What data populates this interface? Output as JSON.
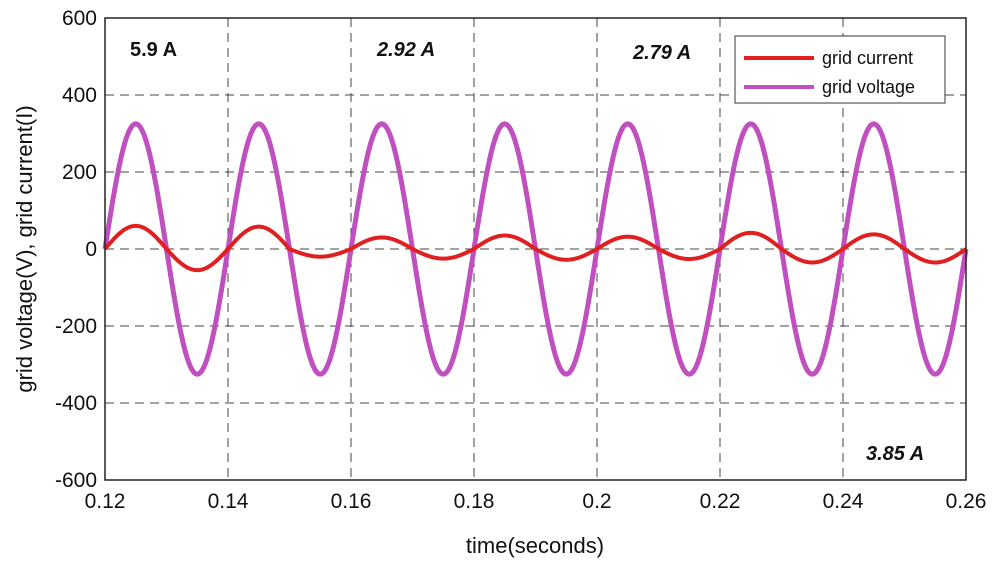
{
  "chart_data": {
    "type": "line",
    "title": "",
    "xlabel": "time(seconds)",
    "ylabel": "grid voltage(V), grid current(I)",
    "xlim": [
      0.12,
      0.26
    ],
    "ylim": [
      -600,
      600
    ],
    "x_ticks": [
      "0.12",
      "0.14",
      "0.16",
      "0.18",
      "0.2",
      "0.22",
      "0.24",
      "0.26"
    ],
    "y_ticks": [
      "-600",
      "-400",
      "-200",
      "0",
      "200",
      "400",
      "600"
    ],
    "grid": true,
    "legend_position": "top-right",
    "series": [
      {
        "name": "grid current",
        "color": "#e02020",
        "waveform": "sine",
        "frequency_hz": 50,
        "phase_start": 0.12,
        "peaks_by_half_cycle": [
          60,
          -55,
          58,
          -20,
          30,
          -25,
          35,
          -28,
          32,
          -26,
          42,
          -35,
          38,
          -35
        ]
      },
      {
        "name": "grid voltage",
        "color": "#c050c0",
        "waveform": "sine",
        "frequency_hz": 50,
        "phase_start": 0.12,
        "amplitude": 325
      }
    ],
    "annotations": [
      {
        "text": "5.9 A",
        "style": "bold"
      },
      {
        "text": "2.92 A",
        "style": "bold-italic"
      },
      {
        "text": "2.79 A",
        "style": "bold-italic"
      },
      {
        "text": "3.85 A",
        "style": "bold-italic"
      }
    ]
  }
}
